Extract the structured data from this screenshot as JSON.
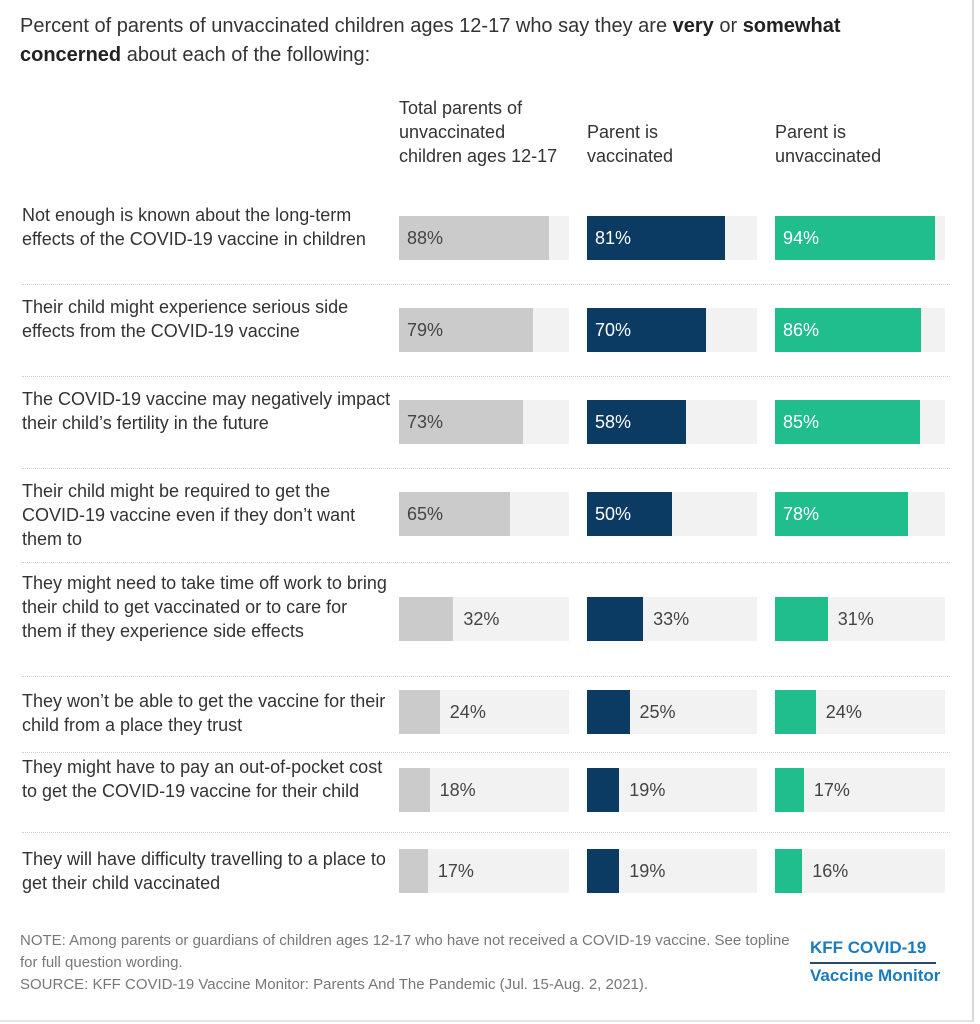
{
  "title": {
    "prefix": "Percent of parents of unvaccinated children ages 12-17 who say they are ",
    "bold1": "very",
    "mid": " or ",
    "bold2": "somewhat concerned",
    "suffix": " about each of the following:"
  },
  "colors": {
    "total": "#cbcbcb",
    "vaccinated": "#0b3a62",
    "unvaccinated": "#1fbe8c",
    "track": "#f2f2f2"
  },
  "chart_data": {
    "type": "bar",
    "orientation": "horizontal",
    "xlim": [
      0,
      100
    ],
    "grid": false,
    "categories": [
      "Not enough is known about the long-term effects of the COVID-19 vaccine in children",
      "Their child might experience serious side effects from the COVID-19 vaccine",
      "The COVID-19 vaccine may negatively impact their child’s fertility in the future",
      "Their child might be required to get the COVID-19 vaccine even if they don’t want them to",
      "They might need to take time off work to bring their child to get vaccinated or to care for them if they experience side effects",
      "They won’t be able to get the vaccine for their child from a place they trust",
      "They might have to pay an out-of-pocket cost to get the COVID-19 vaccine for their child",
      "They will have difficulty travelling to a place to get their child vaccinated"
    ],
    "series": [
      {
        "name": "Total parents of unvaccinated children ages 12-17",
        "values": [
          88,
          79,
          73,
          65,
          32,
          24,
          18,
          17
        ]
      },
      {
        "name": "Parent is vaccinated",
        "values": [
          81,
          70,
          58,
          50,
          33,
          25,
          19,
          19
        ]
      },
      {
        "name": "Parent is unvaccinated",
        "values": [
          94,
          86,
          85,
          78,
          31,
          24,
          17,
          16
        ]
      }
    ]
  },
  "note": "NOTE: Among parents or guardians of children ages 12-17 who have not received a COVID-19 vaccine. See topline for full question wording.",
  "source": "SOURCE: KFF COVID-19 Vaccine Monitor: Parents And The Pandemic (Jul. 15-Aug. 2, 2021).",
  "logo": {
    "line1": "KFF COVID-19",
    "line2": "Vaccine Monitor"
  }
}
